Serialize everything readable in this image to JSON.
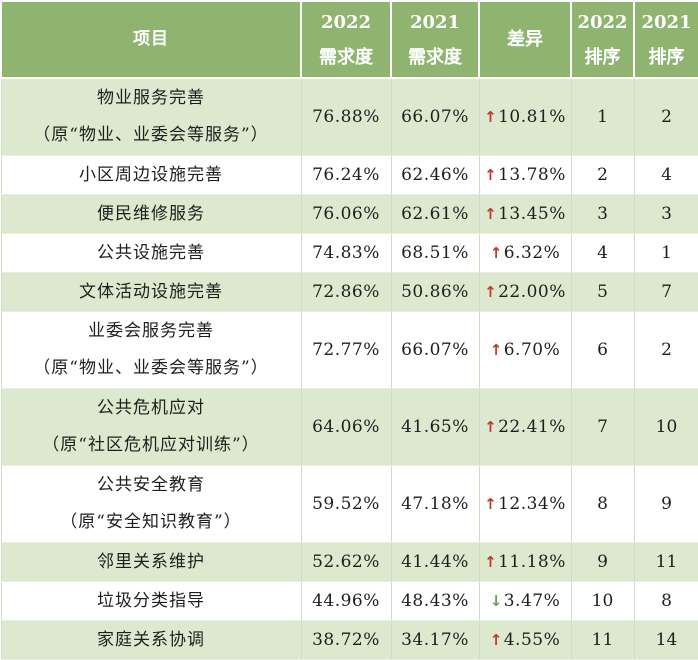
{
  "headers": {
    "item": "项目",
    "demand2022_year": "2022",
    "demand2022_label": "需求度",
    "demand2021_year": "2021",
    "demand2021_label": "需求度",
    "diff": "差异",
    "rank2022_year": "2022",
    "rank2022_label": "排序",
    "rank2021_year": "2021",
    "rank2021_label": "排序"
  },
  "rows": [
    {
      "name": "物业服务完善",
      "note": "（原“物业、业委会等服务”）",
      "d2022": "76.88%",
      "d2021": "66.07%",
      "dir": "up",
      "arrow": "↑",
      "diff": "10.81%",
      "r2022": "1",
      "r2021": "2"
    },
    {
      "name": "小区周边设施完善",
      "note": "",
      "d2022": "76.24%",
      "d2021": "62.46%",
      "dir": "up",
      "arrow": "↑",
      "diff": "13.78%",
      "r2022": "2",
      "r2021": "4"
    },
    {
      "name": "便民维修服务",
      "note": "",
      "d2022": "76.06%",
      "d2021": "62.61%",
      "dir": "up",
      "arrow": "↑",
      "diff": "13.45%",
      "r2022": "3",
      "r2021": "3"
    },
    {
      "name": "公共设施完善",
      "note": "",
      "d2022": "74.83%",
      "d2021": "68.51%",
      "dir": "up",
      "arrow": "↑",
      "diff": "6.32%",
      "r2022": "4",
      "r2021": "1"
    },
    {
      "name": "文体活动设施完善",
      "note": "",
      "d2022": "72.86%",
      "d2021": "50.86%",
      "dir": "up",
      "arrow": "↑",
      "diff": "22.00%",
      "r2022": "5",
      "r2021": "7"
    },
    {
      "name": "业委会服务完善",
      "note": "（原“物业、业委会等服务”）",
      "d2022": "72.77%",
      "d2021": "66.07%",
      "dir": "up",
      "arrow": "↑",
      "diff": "6.70%",
      "r2022": "6",
      "r2021": "2"
    },
    {
      "name": "公共危机应对",
      "note": "（原“社区危机应对训练”）",
      "d2022": "64.06%",
      "d2021": "41.65%",
      "dir": "up",
      "arrow": "↑",
      "diff": "22.41%",
      "r2022": "7",
      "r2021": "10"
    },
    {
      "name": "公共安全教育",
      "note": "（原“安全知识教育”）",
      "d2022": "59.52%",
      "d2021": "47.18%",
      "dir": "up",
      "arrow": "↑",
      "diff": "12.34%",
      "r2022": "8",
      "r2021": "9"
    },
    {
      "name": "邻里关系维护",
      "note": "",
      "d2022": "52.62%",
      "d2021": "41.44%",
      "dir": "up",
      "arrow": "↑",
      "diff": "11.18%",
      "r2022": "9",
      "r2021": "11"
    },
    {
      "name": "垃圾分类指导",
      "note": "",
      "d2022": "44.96%",
      "d2021": "48.43%",
      "dir": "down",
      "arrow": "↓",
      "diff": "3.47%",
      "r2022": "10",
      "r2021": "8"
    },
    {
      "name": "家庭关系协调",
      "note": "",
      "d2022": "38.72%",
      "d2021": "34.17%",
      "dir": "up",
      "arrow": "↑",
      "diff": "4.55%",
      "r2022": "11",
      "r2021": "14"
    }
  ],
  "colors": {
    "header_bg": "#8eb470",
    "shaded_row_bg": "#dce9cf",
    "arrow_up": "#c0392b",
    "arrow_down": "#5aa84a"
  }
}
